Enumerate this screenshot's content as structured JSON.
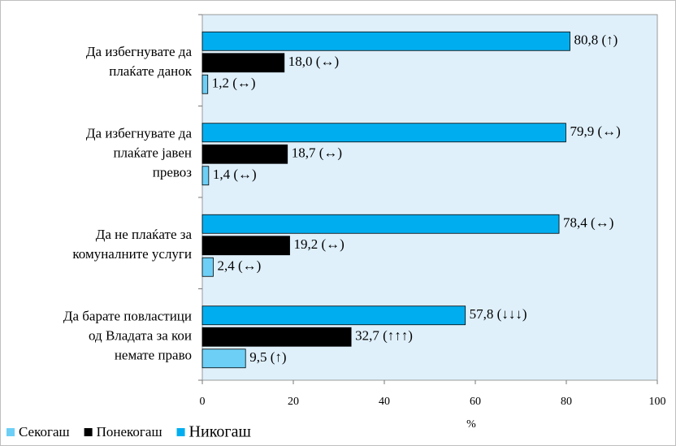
{
  "chart_data": {
    "type": "hbar",
    "categories": [
      [
        "Да избегнувате да",
        "плаќате данок"
      ],
      [
        "Да избегнувате да",
        "плаќате јавен",
        "превоз"
      ],
      [
        "Да не плаќате за",
        "комуналните услуги"
      ],
      [
        "Да барате повластици",
        "од Владата за кои",
        "немате право"
      ]
    ],
    "series": [
      {
        "name": "Секогаш",
        "color": "#6dcff6",
        "values": [
          1.2,
          1.4,
          2.4,
          9.5
        ],
        "value_labels": [
          "1,2 (↔)",
          "1,4 (↔)",
          "2,4 (↔)",
          "9,5 (↑)"
        ]
      },
      {
        "name": "Понекогаш",
        "color": "#000000",
        "values": [
          18.0,
          18.7,
          19.2,
          32.7
        ],
        "value_labels": [
          "18,0 (↔)",
          "18,7 (↔)",
          "19,2 (↔)",
          "32,7 (↑↑↑)"
        ]
      },
      {
        "name": "Никогаш",
        "color": "#00aeef",
        "values": [
          80.8,
          79.9,
          78.4,
          57.8
        ],
        "value_labels": [
          "80,8 (↑)",
          "79,9 (↔)",
          "78,4 (↔)",
          "57,8 (↓↓↓)"
        ]
      }
    ],
    "xlabel": "%",
    "xlim": [
      0,
      100
    ],
    "xticks": [
      0,
      20,
      40,
      60,
      80,
      100
    ]
  }
}
